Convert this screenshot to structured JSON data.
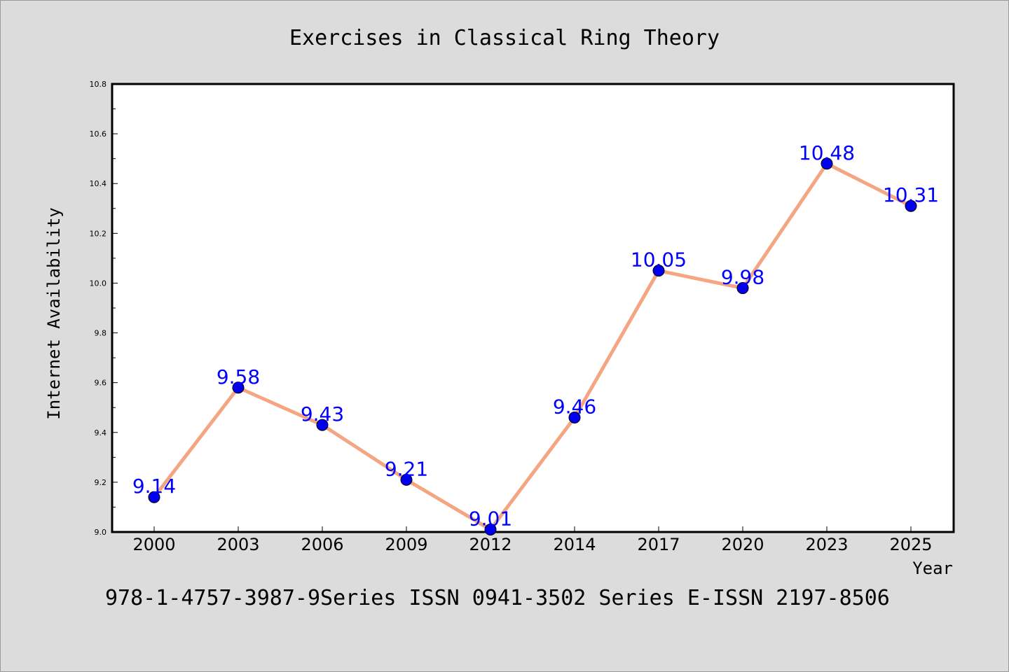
{
  "chart_data": {
    "type": "line",
    "title": "Exercises in Classical Ring Theory",
    "xlabel": "Year",
    "ylabel": "Internet Availability",
    "categories": [
      "2000",
      "2003",
      "2006",
      "2009",
      "2012",
      "2014",
      "2017",
      "2020",
      "2023",
      "2025"
    ],
    "series": [
      {
        "values": [
          9.14,
          9.58,
          9.43,
          9.21,
          9.01,
          9.46,
          10.05,
          9.98,
          10.48,
          10.31
        ],
        "labels": [
          "9.14",
          "9.58",
          "9.43",
          "9.21",
          "9.01",
          "9.46",
          "10.05",
          "9.98",
          "10.48",
          "10.31"
        ],
        "line_color": "#f4a582",
        "marker_color": "#0000ee"
      }
    ],
    "ylim": [
      9.0,
      10.8
    ],
    "yticks": [
      "9.0",
      "9.2",
      "9.4",
      "9.6",
      "9.8",
      "10.0",
      "10.2",
      "10.4",
      "10.6",
      "10.8"
    ],
    "grid": false,
    "legend": "none",
    "data_label_color": "#0000ff"
  },
  "footer": "978-1-4757-3987-9Series ISSN 0941-3502 Series E-ISSN 2197-8506"
}
